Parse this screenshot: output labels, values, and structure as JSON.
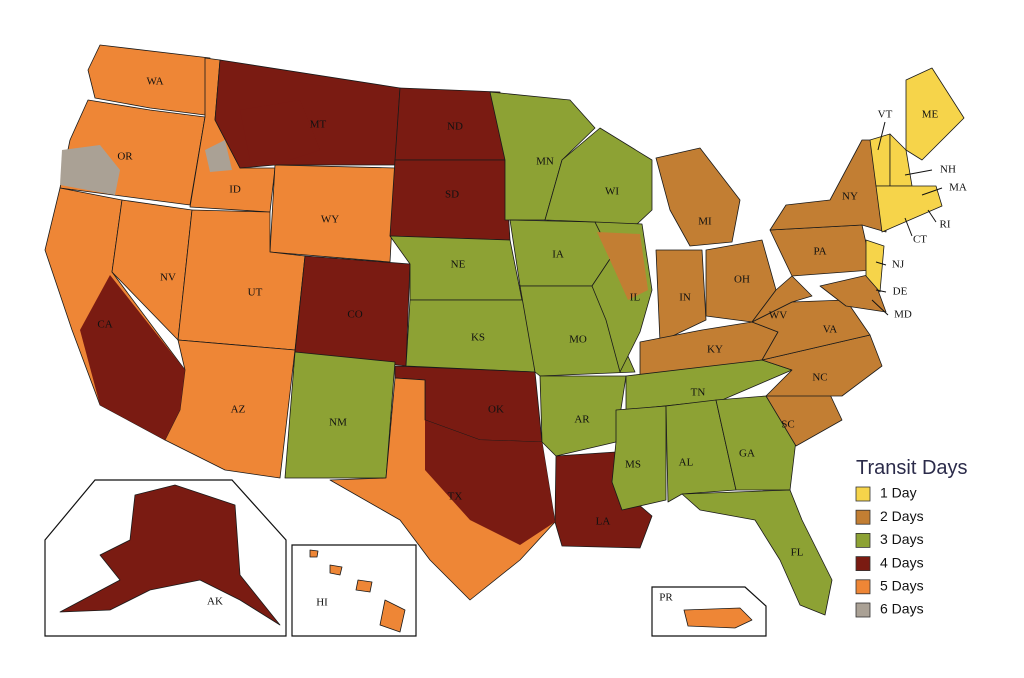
{
  "legend": {
    "title": "Transit Days",
    "items": [
      {
        "label": "1 Day",
        "color": "#f6d44a"
      },
      {
        "label": "2 Days",
        "color": "#c27e33"
      },
      {
        "label": "3 Days",
        "color": "#8da234"
      },
      {
        "label": "4 Days",
        "color": "#7a1b12"
      },
      {
        "label": "5 Days",
        "color": "#ee8636"
      },
      {
        "label": "6 Days",
        "color": "#aaa195"
      }
    ]
  },
  "state_labels": [
    "WA",
    "OR",
    "ID",
    "MT",
    "ND",
    "MN",
    "WI",
    "MI",
    "NY",
    "VT",
    "ME",
    "NH",
    "MA",
    "RI",
    "CT",
    "NJ",
    "PA",
    "DE",
    "MD",
    "OH",
    "IN",
    "IL",
    "IA",
    "NE",
    "SD",
    "WY",
    "NV",
    "UT",
    "CO",
    "KS",
    "MO",
    "KY",
    "WV",
    "VA",
    "NC",
    "TN",
    "SC",
    "AR",
    "OK",
    "NM",
    "AZ",
    "CA",
    "TX",
    "LA",
    "MS",
    "AL",
    "GA",
    "FL",
    "AK",
    "HI",
    "PR"
  ]
}
